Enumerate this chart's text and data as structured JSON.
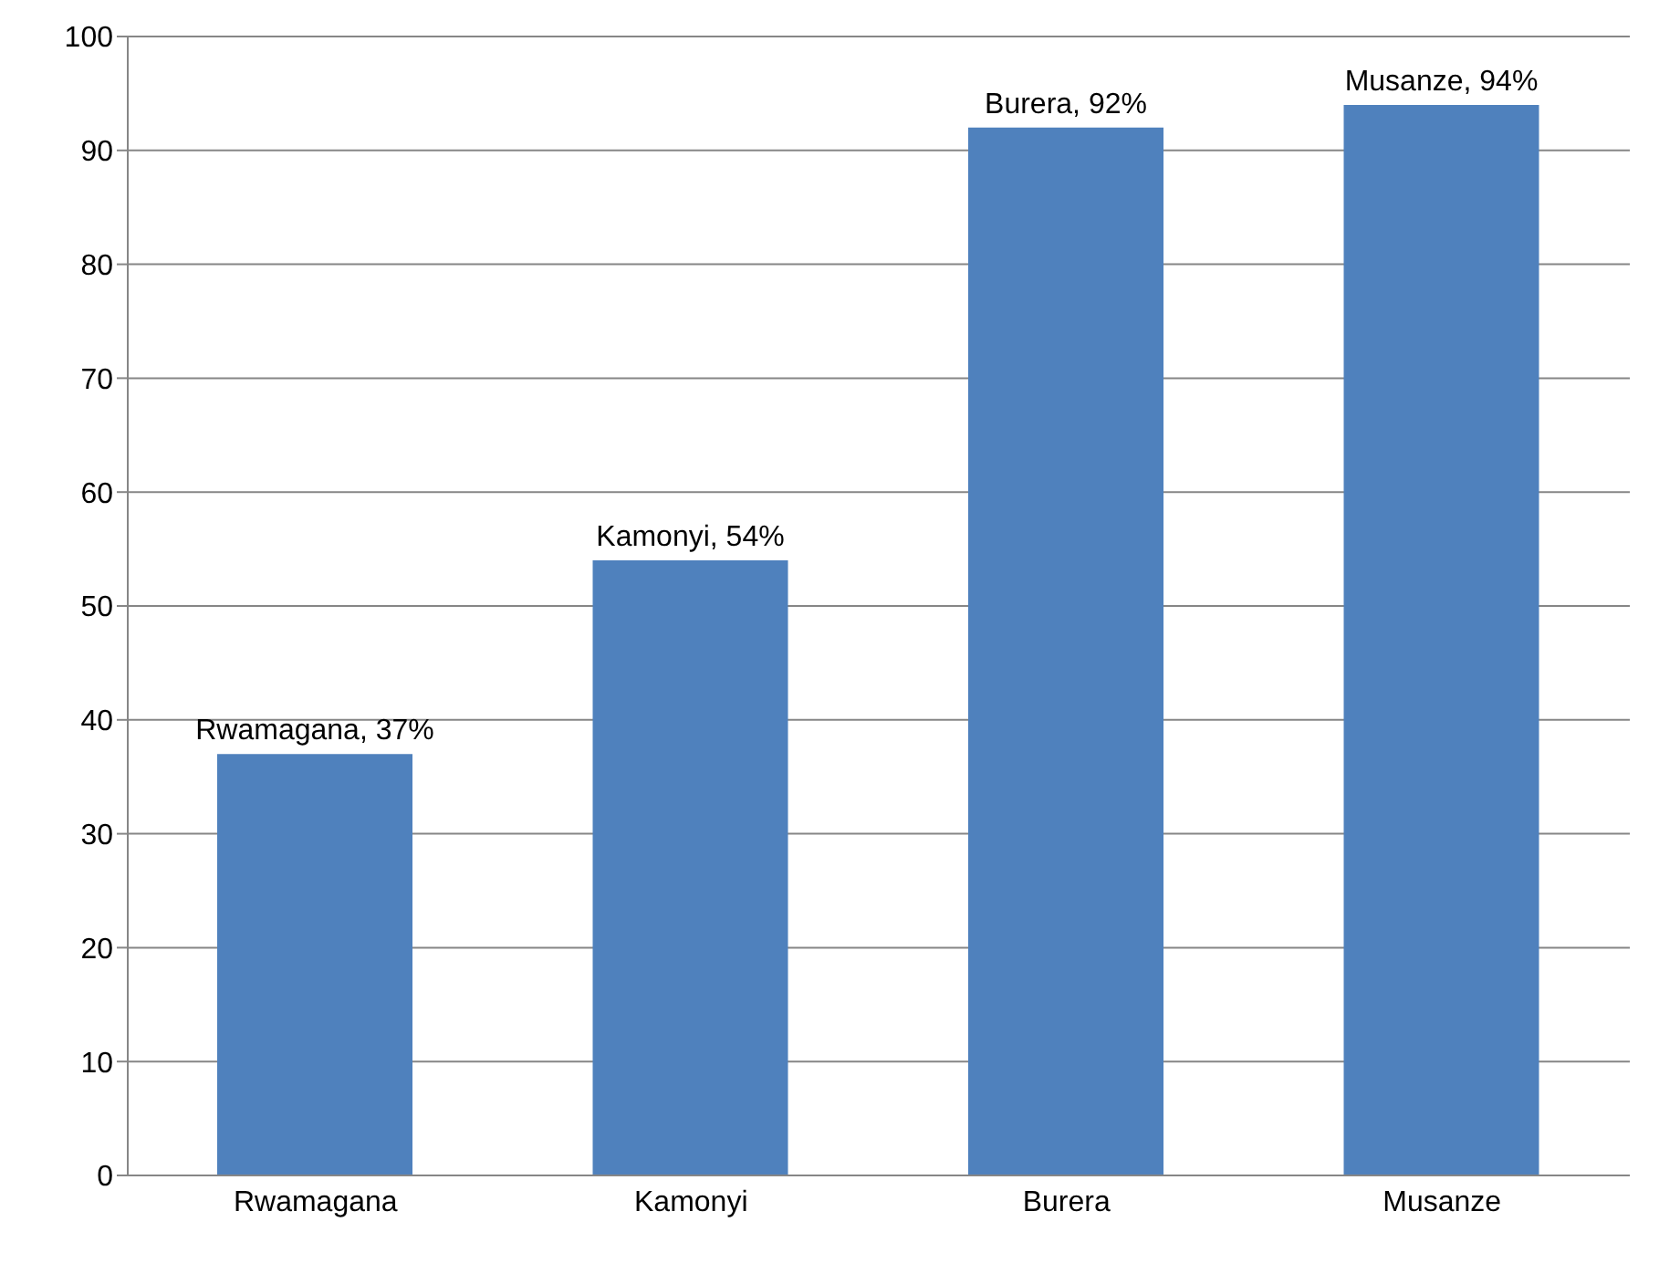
{
  "chart_data": {
    "type": "bar",
    "categories": [
      "Rwamagana",
      "Kamonyi",
      "Burera",
      "Musanze"
    ],
    "values": [
      37,
      54,
      92,
      94
    ],
    "value_labels": [
      "Rwamagana, 37%",
      "Kamonyi, 54%",
      "Burera, 92%",
      "Musanze, 94%"
    ],
    "color": "#4f81bd",
    "ylim": [
      0,
      100
    ],
    "yticks": [
      0,
      10,
      20,
      30,
      40,
      50,
      60,
      70,
      80,
      90,
      100
    ],
    "grid": "y"
  }
}
